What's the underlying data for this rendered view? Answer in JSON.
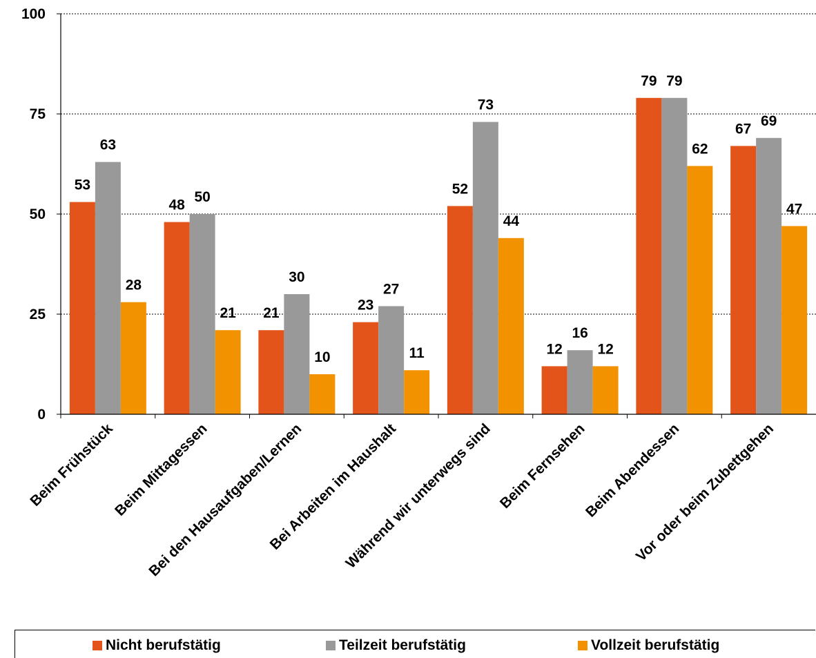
{
  "chart_data": {
    "type": "bar",
    "categories": [
      "Beim Frühstück",
      "Beim Mittagessen",
      "Bei den Hausaufgaben/Lernen",
      "Bei Arbeiten im Haushalt",
      "Während wir unterwegs sind",
      "Beim Fernsehen",
      "Beim Abendessen",
      "Vor oder beim Zubettgehen"
    ],
    "series": [
      {
        "name": "Nicht berufstätig",
        "color": "#E2541A",
        "values": [
          53,
          48,
          21,
          23,
          52,
          12,
          79,
          67
        ]
      },
      {
        "name": "Teilzeit berufstätig",
        "color": "#999999",
        "values": [
          63,
          50,
          30,
          27,
          73,
          16,
          79,
          69
        ]
      },
      {
        "name": "Vollzeit berufstätig",
        "color": "#F39200",
        "values": [
          28,
          21,
          10,
          11,
          44,
          12,
          62,
          47
        ]
      }
    ],
    "ylim": [
      0,
      100
    ],
    "yticks": [
      0,
      25,
      50,
      75,
      100
    ],
    "grid": true,
    "legend_position": "bottom"
  }
}
